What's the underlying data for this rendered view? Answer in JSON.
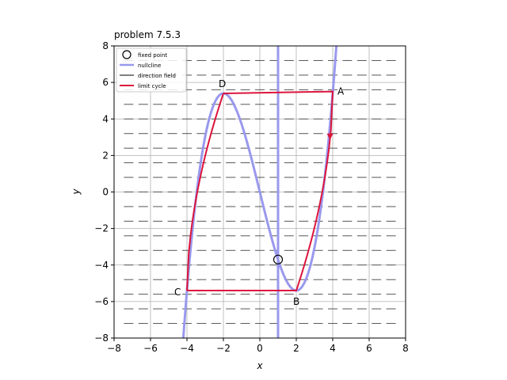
{
  "chart_data": {
    "type": "line",
    "title": "problem 7.5.3",
    "xlabel": "x",
    "ylabel": "y",
    "xlim": [
      -8,
      8
    ],
    "ylim": [
      -8,
      8
    ],
    "xticks": [
      -8,
      -6,
      -4,
      -2,
      0,
      2,
      4,
      6,
      8
    ],
    "yticks": [
      -8,
      -6,
      -4,
      -2,
      0,
      2,
      4,
      6,
      8
    ],
    "grid": true,
    "legend_position": "top-left",
    "legend": [
      "fixed point",
      "nullcline",
      "direction field",
      "limit cycle"
    ],
    "colors": {
      "nullcline": "#9999ee",
      "limit_cycle": "#dc143c",
      "direction_field": "#555555",
      "grid": "#b0b0b0"
    },
    "fixed_point": {
      "x": 1.0,
      "y": -3.7
    },
    "vertical_nullcline_x": 1.0,
    "cubic_nullcline": {
      "formula": "y = x^3/3 - x - 2/3 ... scaled",
      "x_range": [
        -4.2,
        4.1
      ]
    },
    "limit_cycle_points": {
      "A": {
        "label": "A",
        "x": 4.0,
        "y": 5.5
      },
      "B": {
        "label": "B",
        "x": 2.0,
        "y": -5.4
      },
      "C": {
        "label": "C",
        "x": -4.0,
        "y": -5.4
      },
      "D": {
        "label": "D",
        "x": -2.0,
        "y": 5.4
      }
    },
    "direction_field_rows": [
      -7.2,
      -6.4,
      -5.6,
      -4.8,
      -4.0,
      -3.2,
      -2.4,
      -1.6,
      -0.8,
      0.0,
      0.8,
      1.6,
      2.4,
      3.2,
      4.0,
      4.8,
      5.6,
      6.4,
      7.2
    ]
  }
}
